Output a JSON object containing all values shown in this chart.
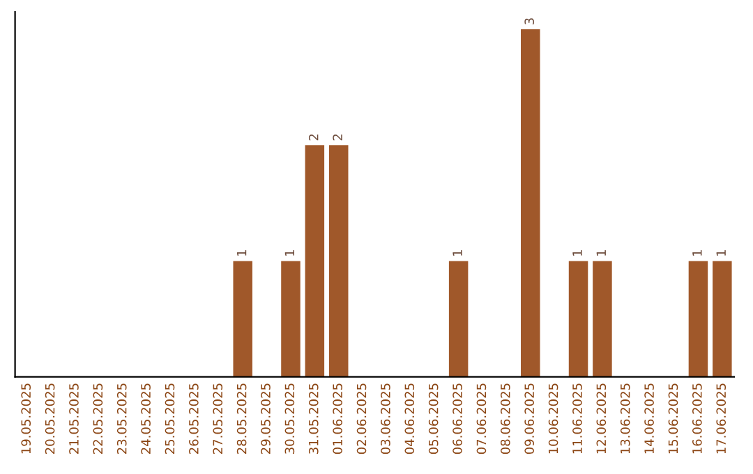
{
  "chart_data": {
    "type": "bar",
    "categories": [
      "19.05.2025",
      "20.05.2025",
      "21.05.2025",
      "22.05.2025",
      "23.05.2025",
      "24.05.2025",
      "25.05.2025",
      "26.05.2025",
      "27.05.2025",
      "28.05.2025",
      "29.05.2025",
      "30.05.2025",
      "31.05.2025",
      "01.06.2025",
      "02.06.2025",
      "03.06.2025",
      "04.06.2025",
      "05.06.2025",
      "06.06.2025",
      "07.06.2025",
      "08.06.2025",
      "09.06.2025",
      "10.06.2025",
      "11.06.2025",
      "12.06.2025",
      "13.06.2025",
      "14.06.2025",
      "15.06.2025",
      "16.06.2025",
      "17.06.2025"
    ],
    "values": [
      null,
      null,
      null,
      null,
      null,
      null,
      null,
      null,
      null,
      1,
      null,
      1,
      2,
      2,
      null,
      null,
      null,
      null,
      1,
      null,
      null,
      3,
      null,
      1,
      1,
      null,
      null,
      null,
      1,
      1
    ],
    "value_labels": [
      null,
      null,
      null,
      null,
      null,
      null,
      null,
      null,
      null,
      "1",
      null,
      "1",
      "2",
      "2",
      null,
      null,
      null,
      null,
      "1",
      null,
      null,
      "3",
      null,
      "1",
      "1",
      null,
      null,
      null,
      "1",
      "1"
    ],
    "color": "#a0582a",
    "tick_labels": "x",
    "grid": false,
    "legend": false
  }
}
